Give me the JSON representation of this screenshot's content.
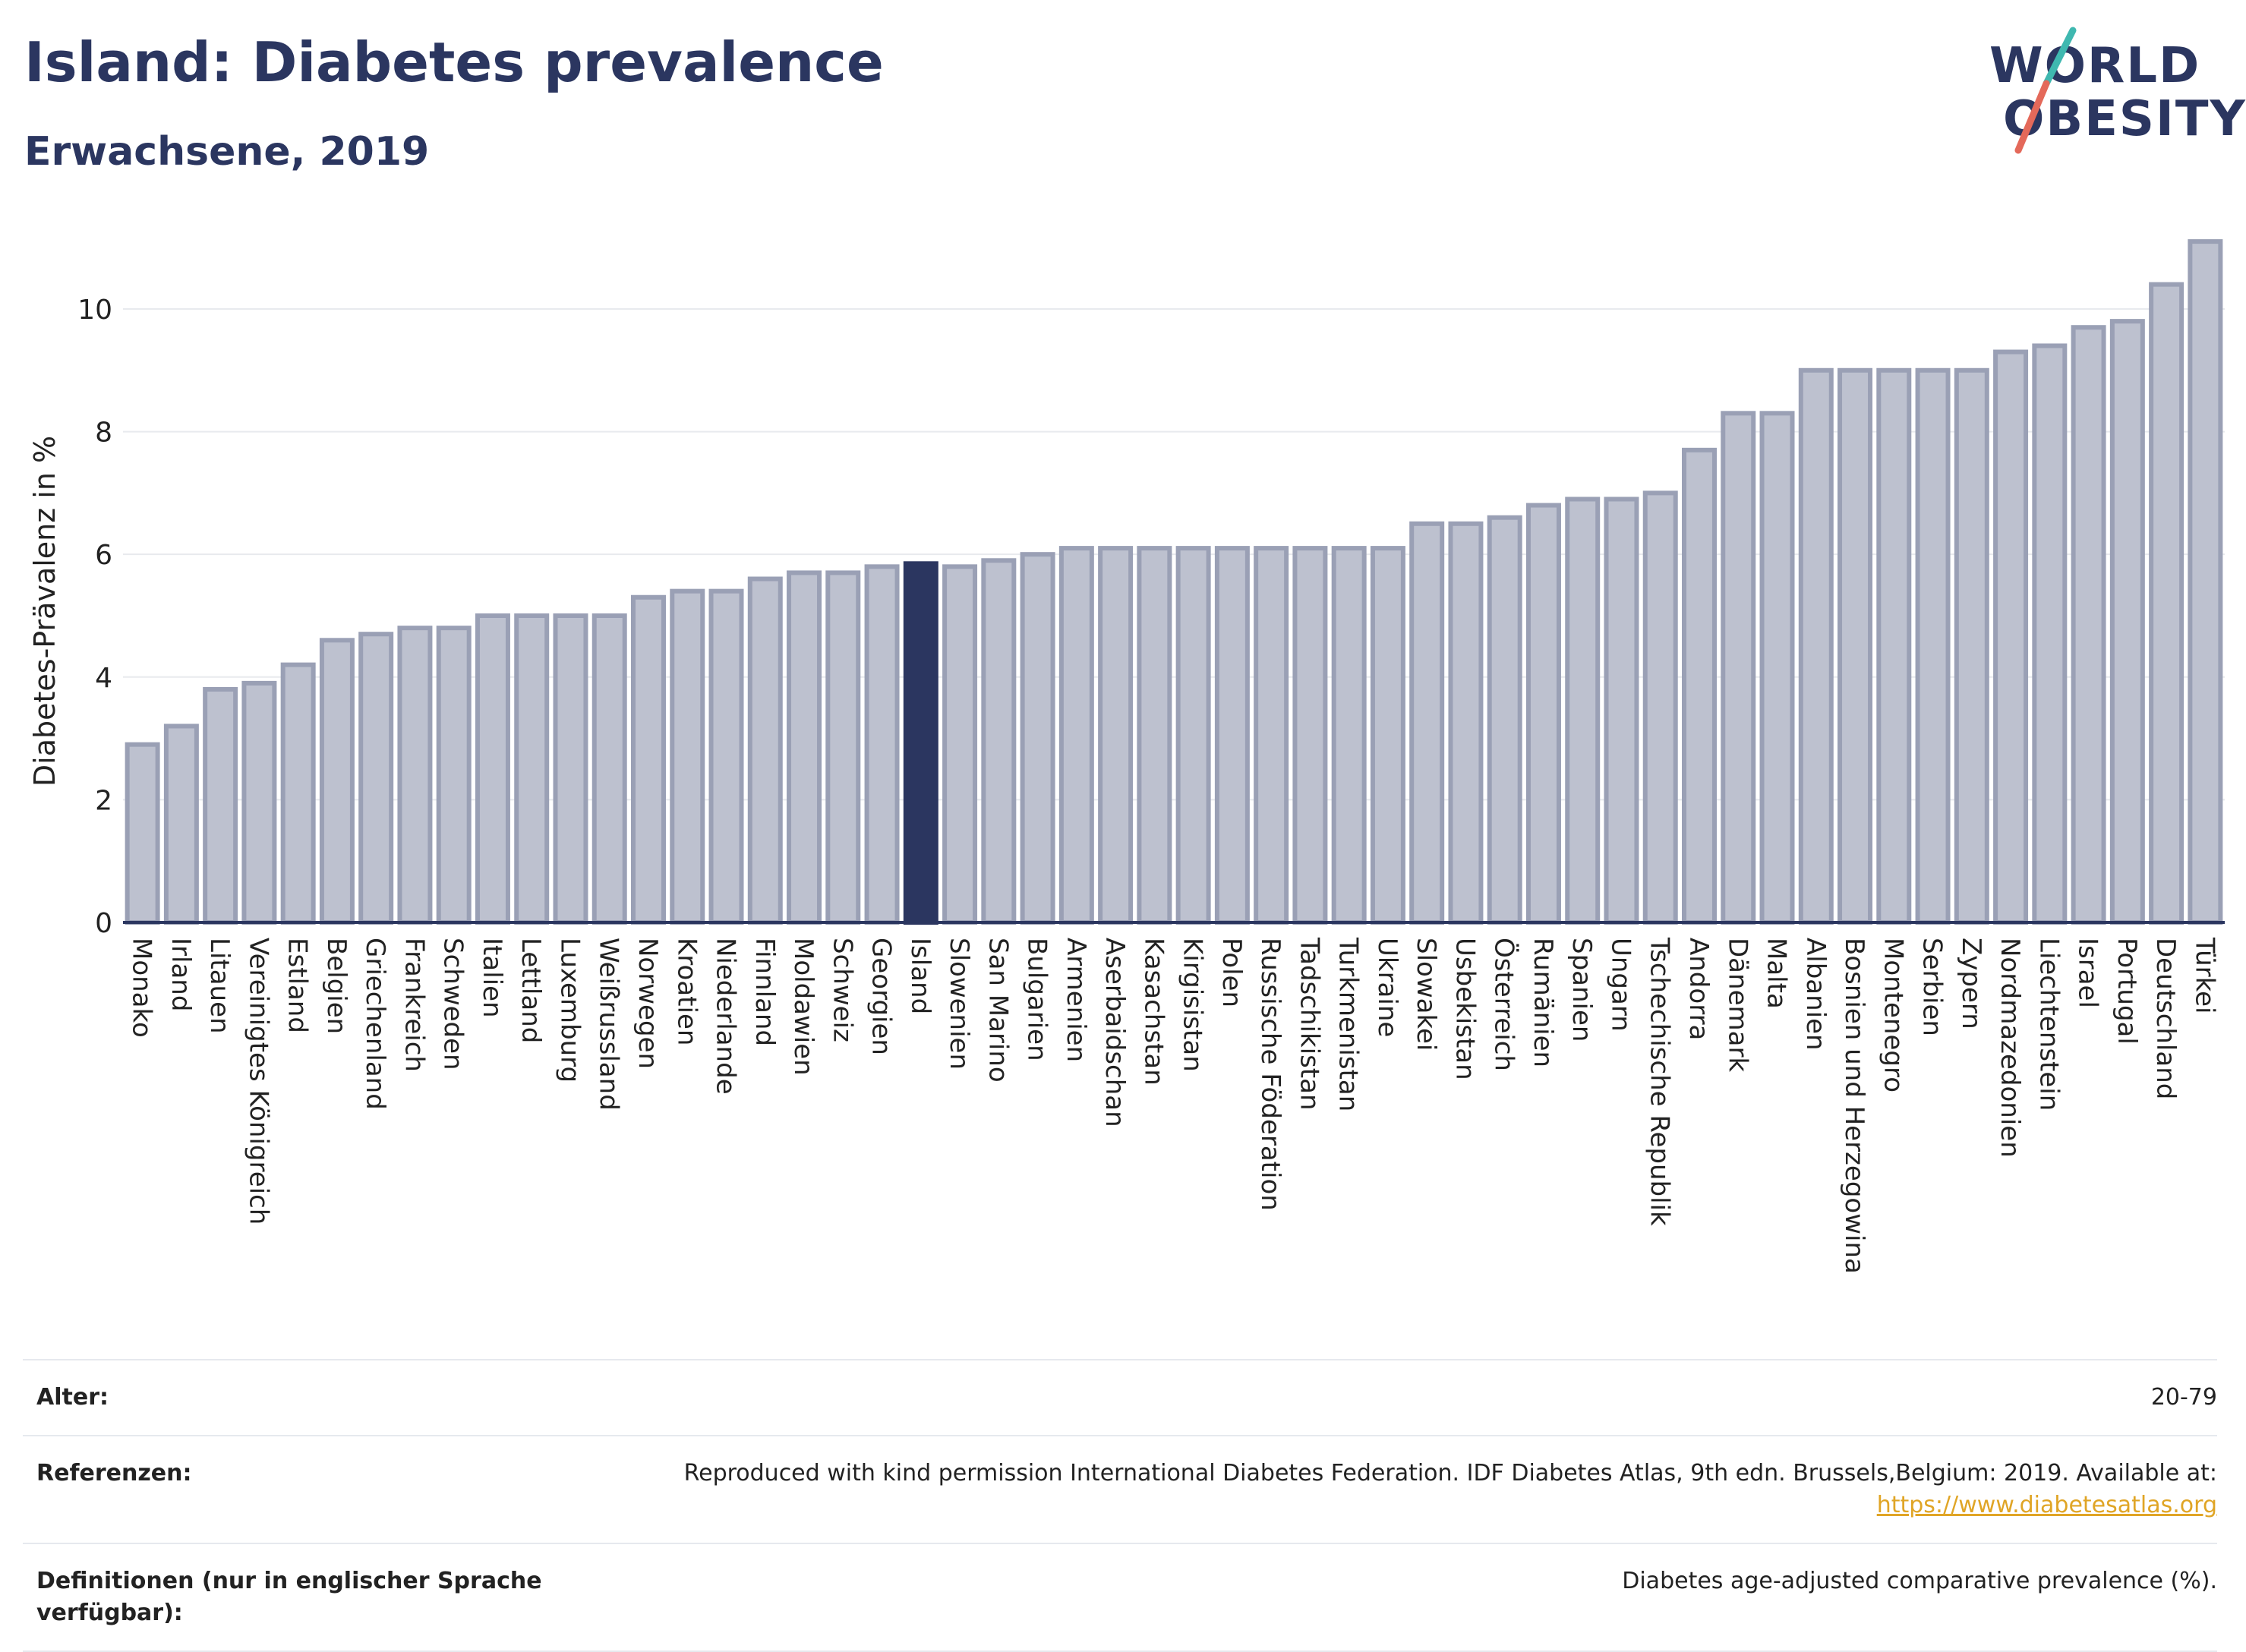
{
  "header": {
    "title": "Island: Diabetes prevalence",
    "subtitle": "Erwachsene, 2019"
  },
  "logo": {
    "line1": "WORLD",
    "line2": "OBESITY",
    "accent_colors": [
      "#3fb8b0",
      "#e4695a"
    ]
  },
  "colors": {
    "bar": "#bdc1cf",
    "bar_stroke": "#9aa0b5",
    "highlight": "#2b3660",
    "axis": "#2b3660",
    "grid": "#e8eaee"
  },
  "chart_data": {
    "type": "bar",
    "title": "",
    "xlabel": "",
    "ylabel": "Diabetes-Prävalenz in %",
    "ylim": [
      0,
      11.2
    ],
    "yticks": [
      0,
      2,
      4,
      6,
      8,
      10
    ],
    "grid": true,
    "highlight": "Island",
    "categories": [
      "Monako",
      "Irland",
      "Litauen",
      "Vereinigtes Königreich",
      "Estland",
      "Belgien",
      "Griechenland",
      "Frankreich",
      "Schweden",
      "Italien",
      "Lettland",
      "Luxemburg",
      "Weißrussland",
      "Norwegen",
      "Kroatien",
      "Niederlande",
      "Finnland",
      "Moldawien",
      "Schweiz",
      "Georgien",
      "Island",
      "Slowenien",
      "San Marino",
      "Bulgarien",
      "Armenien",
      "Aserbaidschan",
      "Kasachstan",
      "Kirgisistan",
      "Polen",
      "Russische Föderation",
      "Tadschikistan",
      "Turkmenistan",
      "Ukraine",
      "Slowakei",
      "Usbekistan",
      "Österreich",
      "Rumänien",
      "Spanien",
      "Ungarn",
      "Tschechische Republik",
      "Andorra",
      "Dänemark",
      "Malta",
      "Albanien",
      "Bosnien und Herzegowina",
      "Montenegro",
      "Serbien",
      "Zypern",
      "Nordmazedonien",
      "Liechtenstein",
      "Israel",
      "Portugal",
      "Deutschland",
      "Türkei"
    ],
    "values": [
      2.9,
      3.2,
      3.8,
      3.9,
      4.2,
      4.6,
      4.7,
      4.8,
      4.8,
      5.0,
      5.0,
      5.0,
      5.0,
      5.3,
      5.4,
      5.4,
      5.6,
      5.7,
      5.7,
      5.8,
      5.85,
      5.8,
      5.9,
      6.0,
      6.1,
      6.1,
      6.1,
      6.1,
      6.1,
      6.1,
      6.1,
      6.1,
      6.1,
      6.5,
      6.5,
      6.6,
      6.8,
      6.9,
      6.9,
      7.0,
      7.7,
      8.3,
      8.3,
      9.0,
      9.0,
      9.0,
      9.0,
      9.0,
      9.3,
      9.4,
      9.7,
      9.8,
      10.4,
      11.1
    ]
  },
  "info": {
    "age_label": "Alter:",
    "age_value": "20-79",
    "ref_label": "Referenzen:",
    "ref_value": "Reproduced with kind permission International Diabetes Federation. IDF Diabetes Atlas, 9th edn. Brussels,Belgium: 2019. Available at:",
    "ref_link": "https://www.diabetesatlas.org",
    "def_label": "Definitionen (nur in englischer Sprache verfügbar):",
    "def_value": "Diabetes age-adjusted comparative prevalence (%)."
  }
}
